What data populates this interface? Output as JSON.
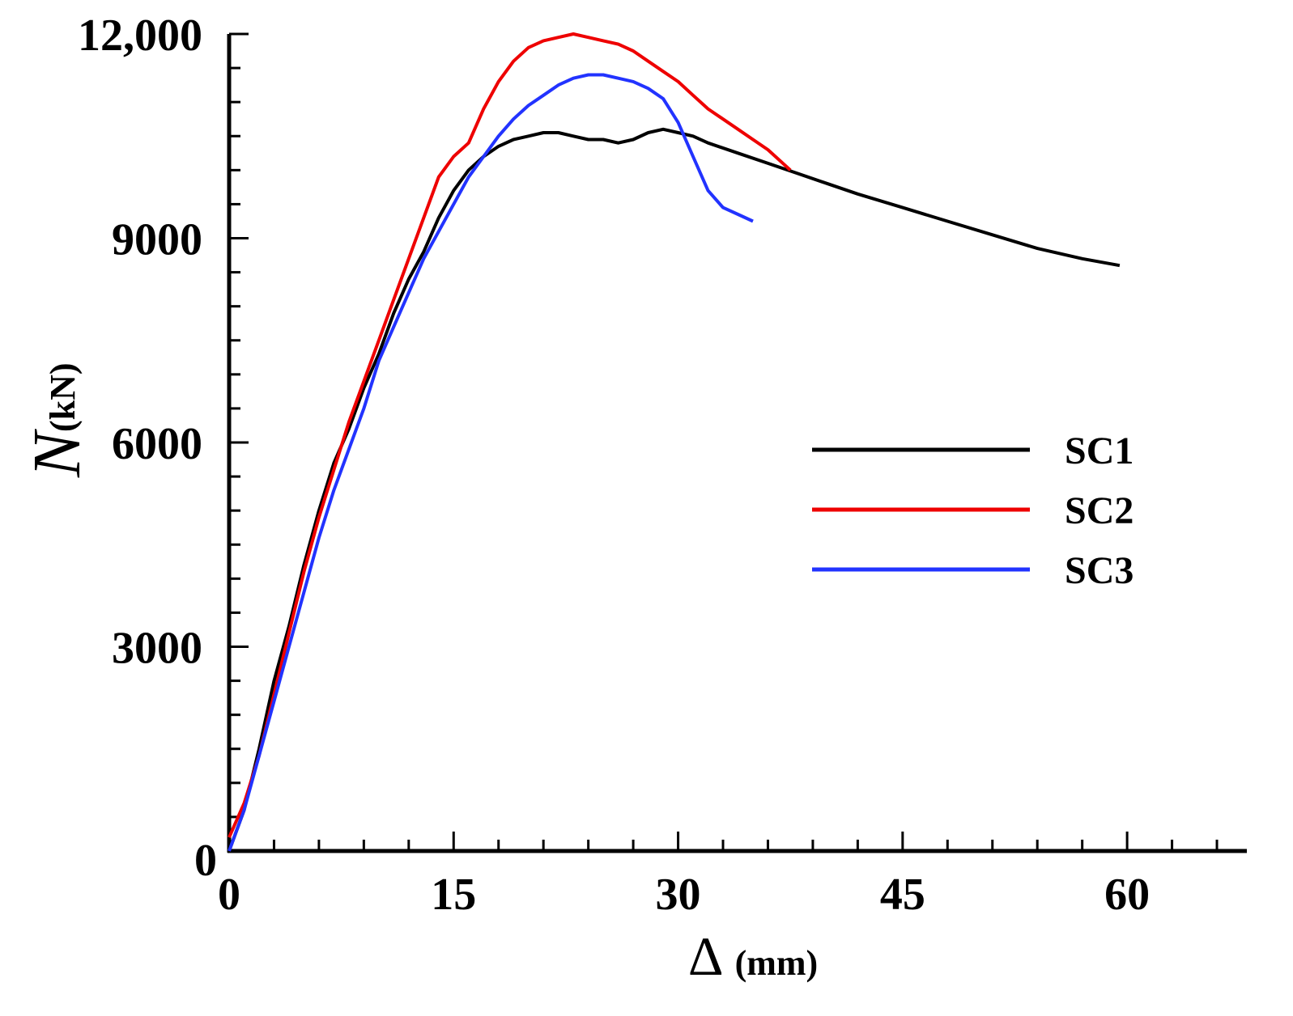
{
  "chart_data": {
    "type": "line",
    "title": "",
    "xlabel": {
      "symbol": "Δ",
      "unit": "(mm)"
    },
    "ylabel": {
      "symbol": "N",
      "unit": "(kN)"
    },
    "xlim": [
      0,
      68
    ],
    "ylim": [
      0,
      12000
    ],
    "x_ticks": [
      0,
      15,
      30,
      45,
      60
    ],
    "x_tick_labels": [
      "0",
      "15",
      "30",
      "45",
      "60"
    ],
    "y_ticks": [
      0,
      3000,
      6000,
      9000,
      12000
    ],
    "y_tick_labels": [
      "0",
      "3000",
      "6000",
      "9000",
      "12,000"
    ],
    "grid": false,
    "legend_position": "right",
    "series": [
      {
        "name": "SC1",
        "color": "#000000",
        "points": [
          [
            0,
            0
          ],
          [
            1,
            600
          ],
          [
            2,
            1500
          ],
          [
            3,
            2500
          ],
          [
            4,
            3300
          ],
          [
            5,
            4200
          ],
          [
            6,
            5000
          ],
          [
            7,
            5700
          ],
          [
            8,
            6200
          ],
          [
            9,
            6800
          ],
          [
            10,
            7300
          ],
          [
            11,
            7900
          ],
          [
            12,
            8400
          ],
          [
            13,
            8800
          ],
          [
            14,
            9300
          ],
          [
            15,
            9700
          ],
          [
            16,
            10000
          ],
          [
            17,
            10200
          ],
          [
            18,
            10350
          ],
          [
            19,
            10450
          ],
          [
            20,
            10500
          ],
          [
            21,
            10550
          ],
          [
            22,
            10550
          ],
          [
            23,
            10500
          ],
          [
            24,
            10450
          ],
          [
            25,
            10450
          ],
          [
            26,
            10400
          ],
          [
            27,
            10450
          ],
          [
            28,
            10550
          ],
          [
            29,
            10600
          ],
          [
            30,
            10550
          ],
          [
            31,
            10500
          ],
          [
            32,
            10400
          ],
          [
            34,
            10250
          ],
          [
            36,
            10100
          ],
          [
            38,
            9950
          ],
          [
            40,
            9800
          ],
          [
            42,
            9650
          ],
          [
            45,
            9450
          ],
          [
            48,
            9250
          ],
          [
            51,
            9050
          ],
          [
            54,
            8850
          ],
          [
            57,
            8700
          ],
          [
            59.5,
            8600
          ]
        ]
      },
      {
        "name": "SC2",
        "color": "#ee0000",
        "points": [
          [
            0,
            200
          ],
          [
            1,
            700
          ],
          [
            2,
            1400
          ],
          [
            3,
            2300
          ],
          [
            4,
            3200
          ],
          [
            5,
            4100
          ],
          [
            6,
            4900
          ],
          [
            7,
            5600
          ],
          [
            8,
            6300
          ],
          [
            9,
            6900
          ],
          [
            10,
            7500
          ],
          [
            11,
            8100
          ],
          [
            12,
            8700
          ],
          [
            13,
            9300
          ],
          [
            14,
            9900
          ],
          [
            15,
            10200
          ],
          [
            16,
            10400
          ],
          [
            17,
            10900
          ],
          [
            18,
            11300
          ],
          [
            19,
            11600
          ],
          [
            20,
            11800
          ],
          [
            21,
            11900
          ],
          [
            22,
            11950
          ],
          [
            23,
            12000
          ],
          [
            24,
            11950
          ],
          [
            25,
            11900
          ],
          [
            26,
            11850
          ],
          [
            27,
            11750
          ],
          [
            28,
            11600
          ],
          [
            29,
            11450
          ],
          [
            30,
            11300
          ],
          [
            31,
            11100
          ],
          [
            32,
            10900
          ],
          [
            33,
            10750
          ],
          [
            34,
            10600
          ],
          [
            35,
            10450
          ],
          [
            36,
            10300
          ],
          [
            37.5,
            10000
          ]
        ]
      },
      {
        "name": "SC3",
        "color": "#2233ff",
        "points": [
          [
            0,
            0
          ],
          [
            1,
            600
          ],
          [
            2,
            1400
          ],
          [
            3,
            2200
          ],
          [
            4,
            3000
          ],
          [
            5,
            3800
          ],
          [
            6,
            4600
          ],
          [
            7,
            5300
          ],
          [
            8,
            5900
          ],
          [
            9,
            6500
          ],
          [
            10,
            7200
          ],
          [
            11,
            7700
          ],
          [
            12,
            8200
          ],
          [
            13,
            8700
          ],
          [
            14,
            9100
          ],
          [
            15,
            9500
          ],
          [
            16,
            9900
          ],
          [
            17,
            10200
          ],
          [
            18,
            10500
          ],
          [
            19,
            10750
          ],
          [
            20,
            10950
          ],
          [
            21,
            11100
          ],
          [
            22,
            11250
          ],
          [
            23,
            11350
          ],
          [
            24,
            11400
          ],
          [
            25,
            11400
          ],
          [
            26,
            11350
          ],
          [
            27,
            11300
          ],
          [
            28,
            11200
          ],
          [
            29,
            11050
          ],
          [
            30,
            10700
          ],
          [
            31,
            10200
          ],
          [
            32,
            9700
          ],
          [
            33,
            9450
          ],
          [
            34,
            9350
          ],
          [
            35,
            9250
          ]
        ]
      }
    ]
  }
}
